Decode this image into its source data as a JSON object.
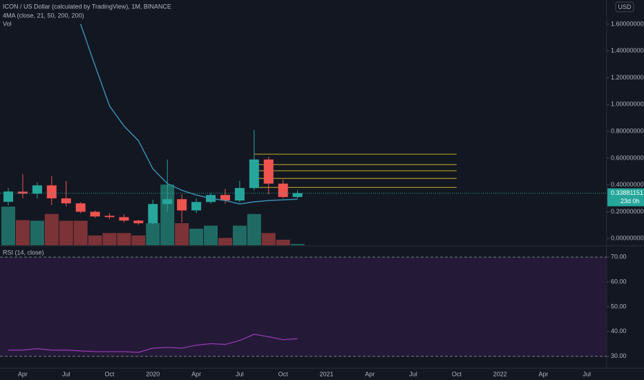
{
  "chart_data": [
    {
      "type": "candlestick",
      "title": "ICON / US Dollar (calculated by TradingView), 1M, BINANCE",
      "indicator": "4MA (close, 21, 50, 200, 200)",
      "volume_label": "Vol",
      "currency": "USD",
      "categories": [
        null,
        "Apr",
        null,
        null,
        "Jul",
        null,
        null,
        "Oct",
        null,
        null,
        "2020",
        null,
        null,
        "Apr",
        null,
        null,
        "Jul",
        null,
        null,
        "Oct",
        null,
        null,
        "2021",
        null,
        null,
        "Apr",
        null,
        null,
        "Jul",
        null,
        null,
        "Oct",
        null,
        null,
        "2022",
        null,
        null,
        "Apr",
        null,
        null,
        "Jul"
      ],
      "open": [
        0.274,
        0.35,
        0.335,
        0.397,
        0.3,
        0.263,
        0.2,
        0.17,
        0.16,
        0.134,
        0.114,
        0.258,
        0.294,
        0.21,
        0.273,
        0.325,
        0.284,
        0.377,
        0.59,
        0.41,
        0.31,
        null,
        null,
        null,
        null,
        null,
        null,
        null,
        null,
        null,
        null,
        null,
        null,
        null,
        null,
        null,
        null,
        null,
        null,
        null,
        null
      ],
      "high": [
        0.377,
        0.48,
        0.42,
        0.465,
        0.43,
        0.27,
        0.21,
        0.19,
        0.18,
        0.14,
        0.29,
        0.59,
        0.33,
        0.3,
        0.34,
        0.37,
        0.43,
        0.81,
        0.61,
        0.44,
        0.36,
        null,
        null,
        null,
        null,
        null,
        null,
        null,
        null,
        null,
        null,
        null,
        null,
        null,
        null,
        null,
        null,
        null,
        null,
        null,
        null
      ],
      "low": [
        0.248,
        0.3,
        0.3,
        0.25,
        0.24,
        0.19,
        0.155,
        0.145,
        0.12,
        0.105,
        0.105,
        0.2,
        0.12,
        0.19,
        0.26,
        0.26,
        0.27,
        0.36,
        0.33,
        0.3,
        0.3,
        null,
        null,
        null,
        null,
        null,
        null,
        null,
        null,
        null,
        null,
        null,
        null,
        null,
        null,
        null,
        null,
        null,
        null,
        null,
        null
      ],
      "close": [
        0.351,
        0.335,
        0.397,
        0.3,
        0.263,
        0.2,
        0.165,
        0.16,
        0.134,
        0.114,
        0.258,
        0.294,
        0.21,
        0.273,
        0.325,
        0.284,
        0.377,
        0.59,
        0.41,
        0.31,
        0.339,
        null,
        null,
        null,
        null,
        null,
        null,
        null,
        null,
        null,
        null,
        null,
        null,
        null,
        null,
        null,
        null,
        null,
        null,
        null,
        null
      ],
      "volume": [
        63,
        41,
        40,
        51,
        40,
        40,
        16,
        20,
        20,
        16,
        36,
        99,
        36,
        27,
        32,
        12,
        32,
        51,
        20,
        9,
        2,
        null,
        null,
        null,
        null,
        null,
        null,
        null,
        null,
        null,
        null,
        null,
        null,
        null,
        null,
        null,
        null,
        null,
        null,
        null,
        null
      ],
      "volume_ylim": [
        0,
        400
      ],
      "up_color": "#26a69a",
      "down_color": "#ef5350",
      "up_volume_color": "#1f6b63",
      "down_volume_color": "#7b3337",
      "ma": {
        "color": "#3a8cb0",
        "values": [
          null,
          null,
          null,
          null,
          null,
          1.6,
          1.29,
          0.99,
          0.84,
          0.73,
          0.52,
          0.41,
          0.36,
          0.325,
          0.3,
          0.284,
          0.258,
          0.274,
          0.284,
          0.289,
          0.294,
          null,
          null,
          null,
          null,
          null,
          null,
          null,
          null,
          null,
          null,
          null,
          null,
          null,
          null,
          null,
          null,
          null,
          null,
          null,
          null
        ]
      },
      "levels": [
        0.63,
        0.552,
        0.506,
        0.449,
        0.382
      ],
      "level_color": "#c9b02a",
      "last_price": 0.33881151,
      "countdown": "23d 0h",
      "ylim": [
        -0.05,
        1.78
      ],
      "yticks": [
        {
          "value": 0,
          "label": "0.00000000"
        },
        {
          "value": 0.2,
          "label": "0.20000000"
        },
        {
          "value": 0.4,
          "label": "0.40000000"
        },
        {
          "value": 0.6,
          "label": "0.60000000"
        },
        {
          "value": 0.8,
          "label": "0.80000000"
        },
        {
          "value": 1,
          "label": "1.00000000"
        },
        {
          "value": 1.2,
          "label": "1.20000000"
        },
        {
          "value": 1.4,
          "label": "1.40000000"
        },
        {
          "value": 1.6,
          "label": "1.60000000"
        }
      ]
    },
    {
      "type": "line",
      "title": "RSI (14, close)",
      "color": "#9c3bb8",
      "band_color": "#241a38",
      "values": [
        32.5,
        32.5,
        33.1,
        32.5,
        32.5,
        32.2,
        31.9,
        31.9,
        31.9,
        31.6,
        33.3,
        33.6,
        33.3,
        34.5,
        35.1,
        34.8,
        36.4,
        38.9,
        37.9,
        36.7,
        37.1,
        null,
        null,
        null,
        null,
        null,
        null,
        null,
        null,
        null,
        null,
        null,
        null,
        null,
        null,
        null,
        null,
        null,
        null,
        null,
        null
      ],
      "ylim": [
        25.2,
        74.2
      ],
      "yticks": [
        {
          "value": 30,
          "label": "30.00"
        },
        {
          "value": 40,
          "label": "40.00"
        },
        {
          "value": 50,
          "label": "50.00"
        },
        {
          "value": 60,
          "label": "60.00"
        },
        {
          "value": 70,
          "label": "70.00"
        }
      ]
    }
  ]
}
